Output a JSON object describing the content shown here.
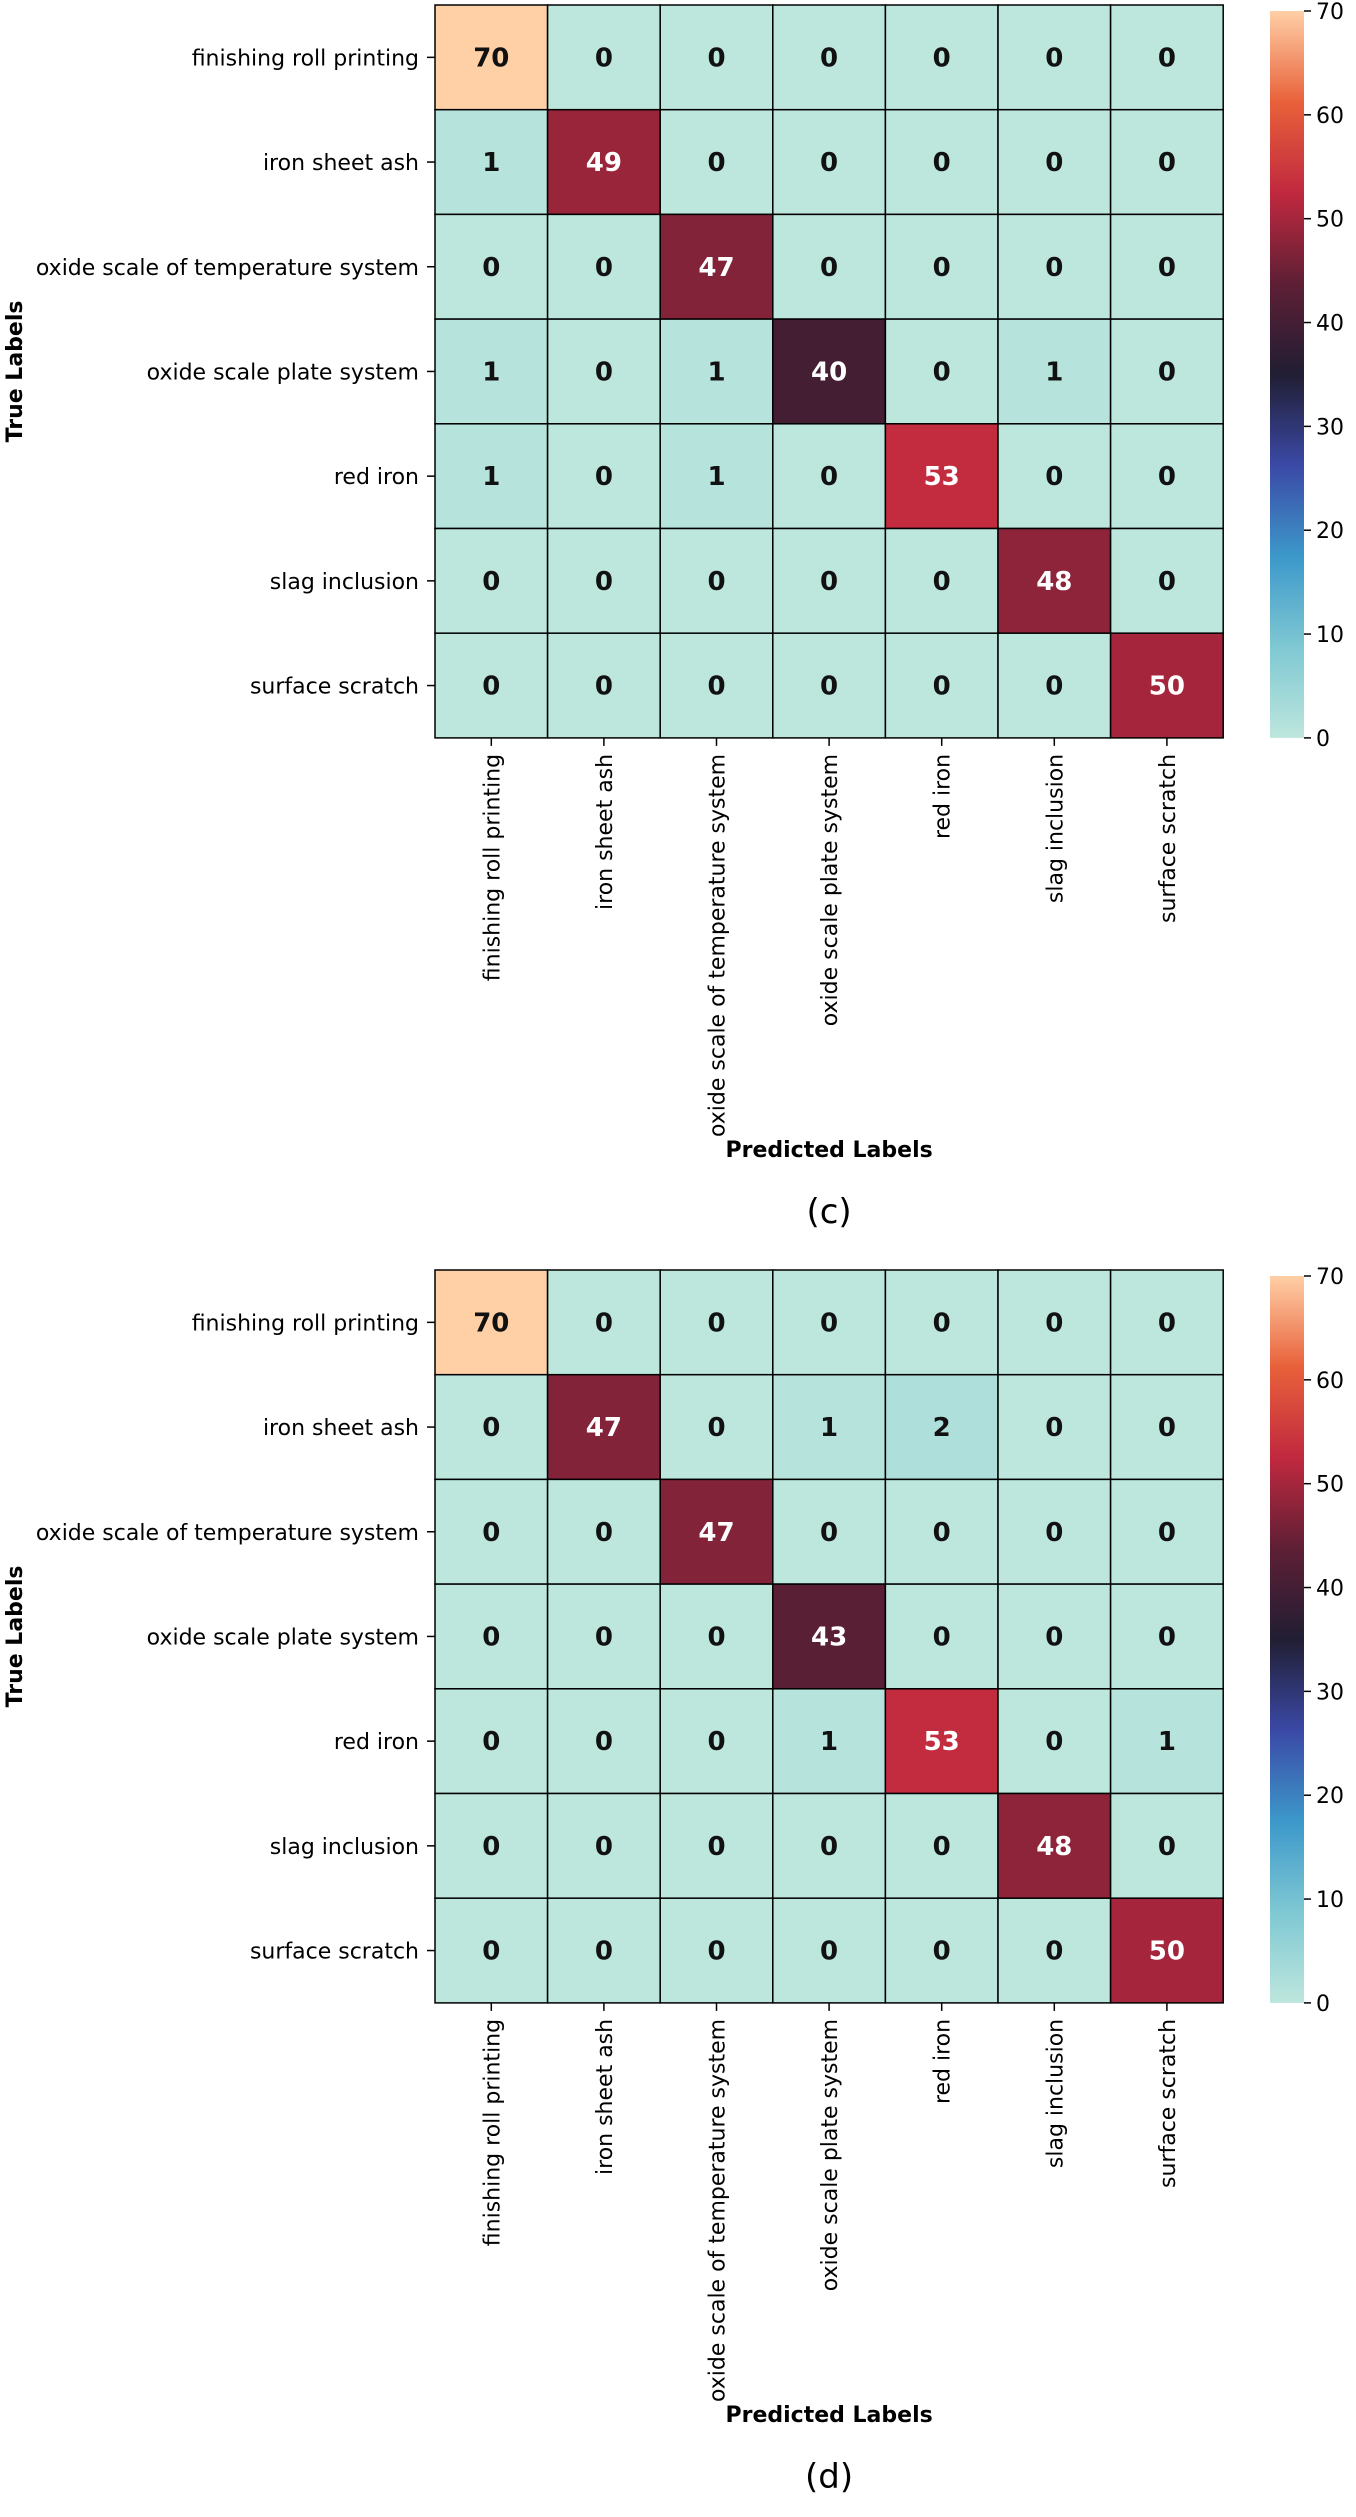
{
  "chart_data": [
    {
      "type": "heatmap",
      "caption": "(c)",
      "xlabel": "Predicted Labels",
      "ylabel": "True Labels",
      "rows": [
        "finishing roll printing",
        "iron sheet ash",
        "oxide scale of temperature system",
        "oxide scale plate system",
        "red iron",
        "slag inclusion",
        "surface scratch"
      ],
      "columns": [
        "finishing roll printing",
        "iron sheet ash",
        "oxide scale of temperature system",
        "oxide scale plate system",
        "red iron",
        "slag inclusion",
        "surface scratch"
      ],
      "values": [
        [
          70,
          0,
          0,
          0,
          0,
          0,
          0
        ],
        [
          1,
          49,
          0,
          0,
          0,
          0,
          0
        ],
        [
          0,
          0,
          47,
          0,
          0,
          0,
          0
        ],
        [
          1,
          0,
          1,
          40,
          0,
          1,
          0
        ],
        [
          1,
          0,
          1,
          0,
          53,
          0,
          0
        ],
        [
          0,
          0,
          0,
          0,
          0,
          48,
          0
        ],
        [
          0,
          0,
          0,
          0,
          0,
          0,
          50
        ]
      ],
      "vmin": 0,
      "vmax": 70,
      "colorbar_ticks": [
        0,
        10,
        20,
        30,
        40,
        50,
        60,
        70
      ]
    },
    {
      "type": "heatmap",
      "caption": "(d)",
      "xlabel": "Predicted Labels",
      "ylabel": "True Labels",
      "rows": [
        "finishing roll printing",
        "iron sheet ash",
        "oxide scale of temperature system",
        "oxide scale plate system",
        "red iron",
        "slag inclusion",
        "surface scratch"
      ],
      "columns": [
        "finishing roll printing",
        "iron sheet ash",
        "oxide scale of temperature system",
        "oxide scale plate system",
        "red iron",
        "slag inclusion",
        "surface scratch"
      ],
      "values": [
        [
          70,
          0,
          0,
          0,
          0,
          0,
          0
        ],
        [
          0,
          47,
          0,
          1,
          2,
          0,
          0
        ],
        [
          0,
          0,
          47,
          0,
          0,
          0,
          0
        ],
        [
          0,
          0,
          0,
          43,
          0,
          0,
          0
        ],
        [
          0,
          0,
          0,
          1,
          53,
          0,
          1
        ],
        [
          0,
          0,
          0,
          0,
          0,
          48,
          0
        ],
        [
          0,
          0,
          0,
          0,
          0,
          0,
          50
        ]
      ],
      "vmin": 0,
      "vmax": 70,
      "colorbar_ticks": [
        0,
        10,
        20,
        30,
        40,
        50,
        60,
        70
      ]
    }
  ],
  "colormap": {
    "name": "icefire",
    "stops": [
      "#bde6dd",
      "#7fc8d3",
      "#3c98ca",
      "#3b49a6",
      "#211e33",
      "#5e1f35",
      "#c1293f",
      "#e8613a",
      "#ffcfa6"
    ]
  }
}
